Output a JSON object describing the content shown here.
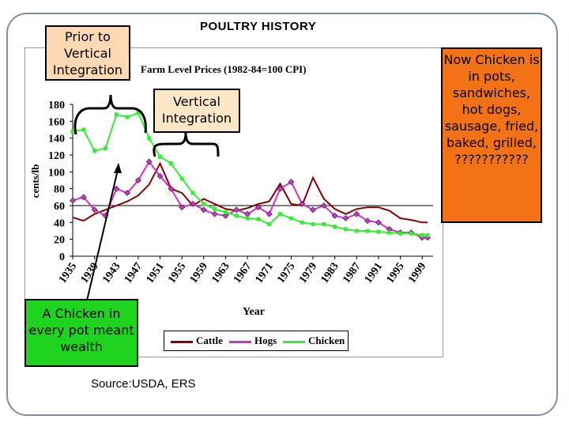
{
  "slide": {
    "title": "POULTRY HISTORY",
    "source": "Source:USDA, ERS"
  },
  "callouts": {
    "prior": "Prior to Vertical Integration",
    "vertical": "Vertical Integration",
    "chicken_pot": "A Chicken in every pot meant wealth",
    "now": "Now Chicken is in pots, sandwiches, hot dogs, sausage, fried, baked, grilled, ???????????"
  },
  "colors": {
    "cattle": "#8b0000",
    "hogs": "#cc33cc",
    "chicken": "#33ee33",
    "callout_now_bg": "#f47216",
    "callout_pot_bg": "#1fd41f"
  },
  "chart_data": {
    "type": "line",
    "title": "Farm Level Prices (1982-84=100 CPI)",
    "xlabel": "Year",
    "ylabel": "cents/lb",
    "xlim": [
      1935,
      2001
    ],
    "ylim": [
      0,
      180
    ],
    "yticks": [
      0,
      20,
      40,
      60,
      80,
      100,
      120,
      140,
      160,
      180
    ],
    "xticks": [
      1935,
      1939,
      1943,
      1947,
      1951,
      1955,
      1959,
      1963,
      1967,
      1971,
      1975,
      1979,
      1983,
      1987,
      1991,
      1995,
      1999
    ],
    "reference_line_y": 60,
    "legend": [
      "Cattle",
      "Hogs",
      "Chicken"
    ],
    "legend_position": "bottom",
    "series": [
      {
        "name": "Cattle",
        "marker": "none",
        "x": [
          1935,
          1937,
          1939,
          1941,
          1943,
          1945,
          1947,
          1949,
          1951,
          1953,
          1955,
          1957,
          1959,
          1961,
          1963,
          1965,
          1967,
          1969,
          1971,
          1973,
          1975,
          1977,
          1979,
          1981,
          1983,
          1985,
          1987,
          1989,
          1991,
          1993,
          1995,
          1997,
          1999,
          2000
        ],
        "y": [
          46,
          42,
          50,
          55,
          60,
          65,
          72,
          85,
          110,
          80,
          75,
          60,
          68,
          62,
          56,
          54,
          57,
          62,
          65,
          86,
          62,
          60,
          93,
          68,
          56,
          50,
          56,
          58,
          58,
          54,
          45,
          43,
          40,
          40
        ]
      },
      {
        "name": "Hogs",
        "marker": "diamond",
        "x": [
          1935,
          1937,
          1939,
          1941,
          1943,
          1945,
          1947,
          1949,
          1951,
          1953,
          1955,
          1957,
          1959,
          1961,
          1963,
          1965,
          1967,
          1969,
          1971,
          1973,
          1975,
          1977,
          1979,
          1981,
          1983,
          1985,
          1987,
          1989,
          1991,
          1993,
          1995,
          1997,
          1999,
          2000
        ],
        "y": [
          66,
          70,
          55,
          48,
          80,
          75,
          90,
          112,
          95,
          80,
          58,
          62,
          55,
          50,
          48,
          55,
          50,
          58,
          50,
          80,
          88,
          62,
          55,
          60,
          48,
          45,
          50,
          42,
          40,
          32,
          28,
          28,
          22,
          22
        ]
      },
      {
        "name": "Chicken",
        "marker": "square",
        "x": [
          1935,
          1937,
          1939,
          1941,
          1943,
          1945,
          1947,
          1949,
          1951,
          1953,
          1955,
          1957,
          1959,
          1961,
          1963,
          1965,
          1967,
          1969,
          1971,
          1973,
          1975,
          1977,
          1979,
          1981,
          1983,
          1985,
          1987,
          1989,
          1991,
          1993,
          1995,
          1997,
          1999,
          2000
        ],
        "y": [
          148,
          150,
          125,
          128,
          168,
          165,
          170,
          140,
          118,
          110,
          92,
          75,
          62,
          56,
          52,
          48,
          45,
          44,
          38,
          50,
          45,
          40,
          38,
          38,
          35,
          32,
          30,
          30,
          29,
          28,
          27,
          27,
          25,
          25
        ]
      }
    ]
  }
}
